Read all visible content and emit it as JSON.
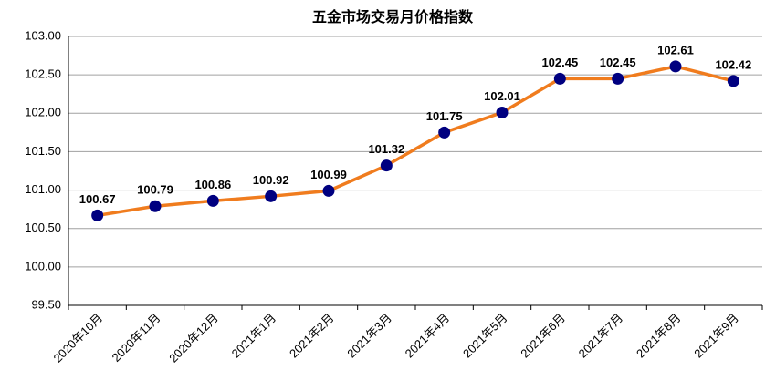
{
  "chart_data": {
    "type": "line",
    "title": "五金市场交易月价格指数",
    "categories": [
      "2020年10月",
      "2020年11月",
      "2020年12月",
      "2021年1月",
      "2021年2月",
      "2021年3月",
      "2021年4月",
      "2021年5月",
      "2021年6月",
      "2021年7月",
      "2021年8月",
      "2021年9月"
    ],
    "series": [
      {
        "color": "#f07c1e",
        "marker_color": "#000080",
        "values": [
          100.67,
          100.79,
          100.86,
          100.92,
          100.99,
          101.32,
          101.75,
          102.01,
          102.45,
          102.45,
          102.61,
          102.42
        ]
      }
    ],
    "ylim": [
      99.5,
      103
    ],
    "yticks": [
      {
        "value": 99.5,
        "label": "99.50"
      },
      {
        "value": 100,
        "label": "100.00"
      },
      {
        "value": 100.5,
        "label": "100.50"
      },
      {
        "value": 101,
        "label": "101.00"
      },
      {
        "value": 101.5,
        "label": "101.50"
      },
      {
        "value": 102,
        "label": "102.00"
      },
      {
        "value": 102.5,
        "label": "102.50"
      },
      {
        "value": 103,
        "label": "103.00"
      }
    ],
    "grid": true
  }
}
